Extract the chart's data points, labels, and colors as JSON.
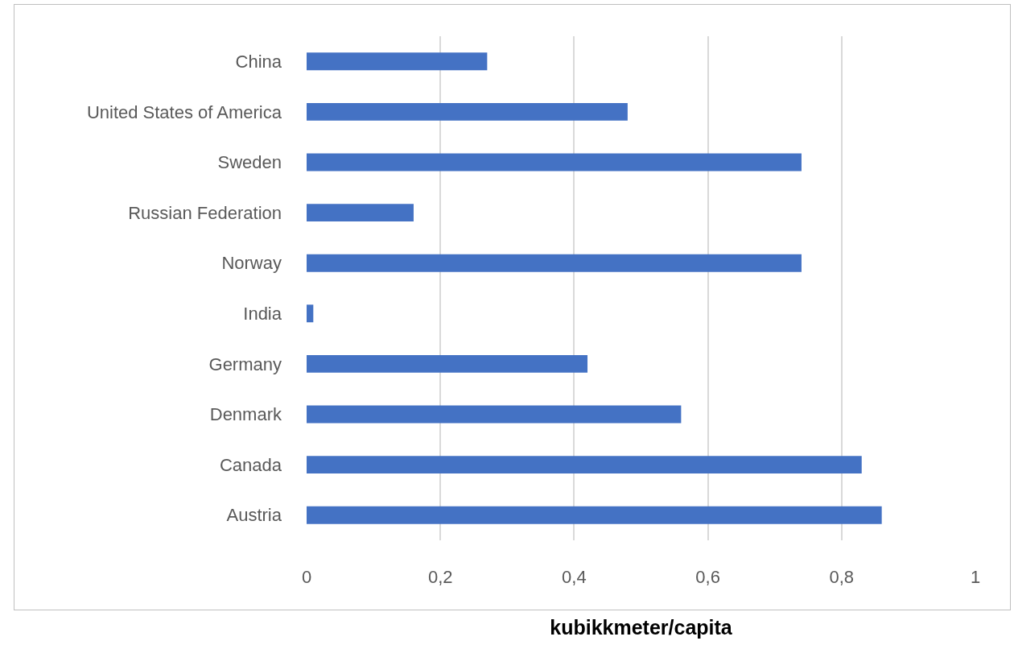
{
  "chart_data": {
    "type": "bar",
    "orientation": "horizontal",
    "xlabel": "kubikkmeter/capita",
    "categories": [
      "China",
      "United States of America",
      "Sweden",
      "Russian Federation",
      "Norway",
      "India",
      "Germany",
      "Denmark",
      "Canada",
      "Austria"
    ],
    "values": [
      0.27,
      0.48,
      0.74,
      0.16,
      0.74,
      0.01,
      0.42,
      0.56,
      0.83,
      0.86
    ],
    "color": "#4472c4",
    "xlim": [
      0,
      1
    ],
    "xticks": [
      0,
      {
        "value": 0.2,
        "label": "0,2"
      },
      {
        "value": 0.4,
        "label": "0,4"
      },
      {
        "value": 0.6,
        "label": "0,6"
      },
      {
        "value": 0.8,
        "label": "0,8"
      },
      1
    ],
    "grid": "x"
  }
}
